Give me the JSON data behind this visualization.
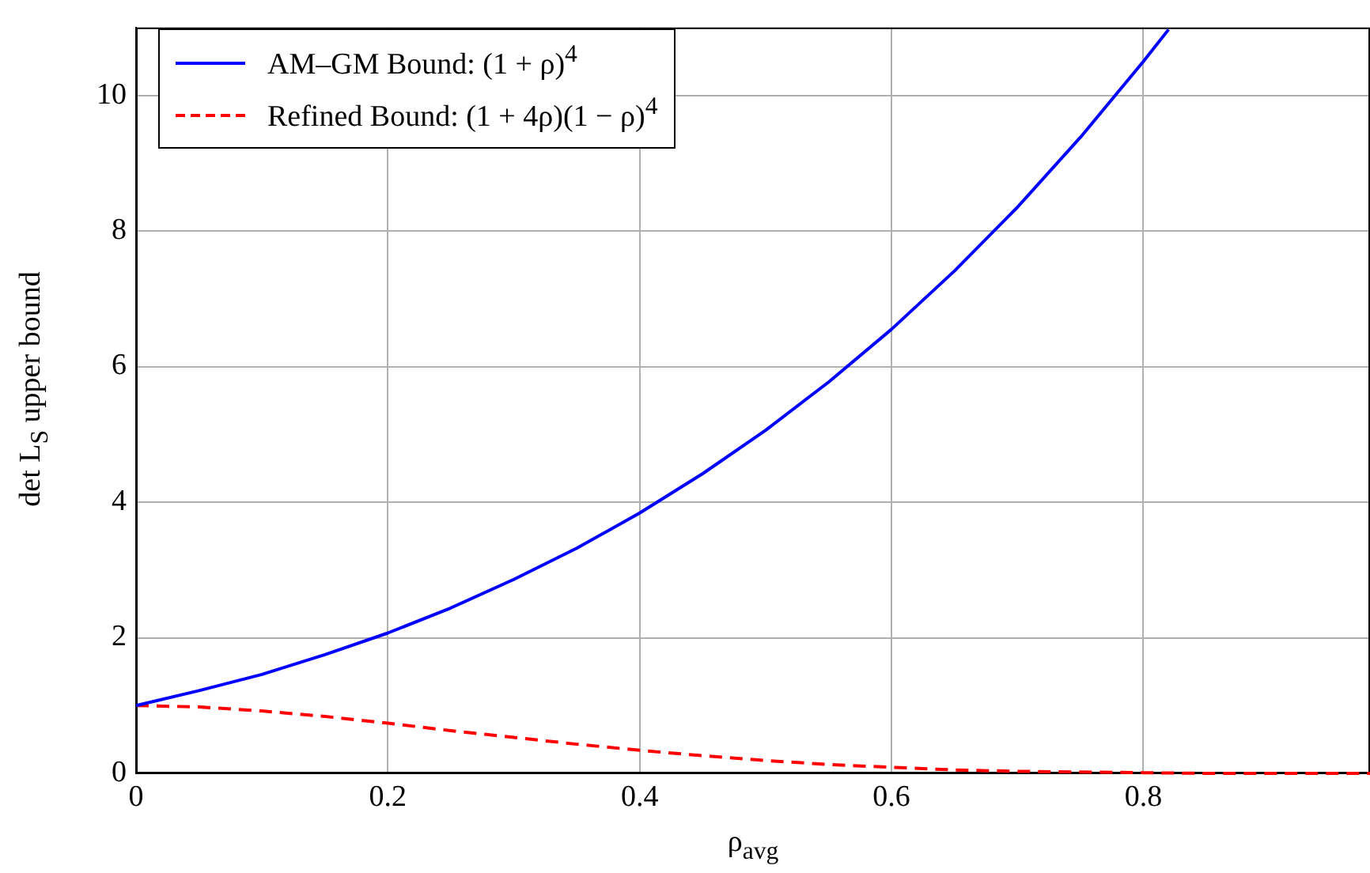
{
  "chart_data": {
    "type": "line",
    "xlabel": "ρ$_{avg}$",
    "ylabel": "det L$_{S}$ upper bound",
    "xlim": [
      0,
      0.98
    ],
    "ylim": [
      0,
      11
    ],
    "xticks": [
      0,
      0.2,
      0.4,
      0.6,
      0.8
    ],
    "yticks": [
      0,
      2,
      4,
      6,
      8,
      10
    ],
    "grid": true,
    "legend": "top left",
    "marker": "none",
    "series": [
      {
        "name": "AM–GM Bound: (1 + ρ)$^{4}$",
        "color": "#0000ff",
        "line_style": "solid",
        "x": [
          0,
          0.05,
          0.1,
          0.15,
          0.2,
          0.25,
          0.3,
          0.35,
          0.4,
          0.45,
          0.5,
          0.55,
          0.6,
          0.65,
          0.7,
          0.75,
          0.8,
          0.82
        ],
        "values": [
          1,
          1.22,
          1.46,
          1.75,
          2.07,
          2.44,
          2.86,
          3.32,
          3.84,
          4.42,
          5.06,
          5.77,
          6.55,
          7.41,
          8.35,
          9.38,
          10.5,
          10.97
        ]
      },
      {
        "name": "Refined Bound: (1 + 4ρ)(1 − ρ)$^{4}$",
        "color": "#ff0000",
        "line_style": "dashed",
        "x": [
          0,
          0.05,
          0.1,
          0.15,
          0.2,
          0.25,
          0.3,
          0.35,
          0.4,
          0.45,
          0.5,
          0.55,
          0.6,
          0.65,
          0.7,
          0.75,
          0.8,
          0.85,
          0.9,
          0.98
        ],
        "values": [
          1,
          0.98,
          0.92,
          0.84,
          0.74,
          0.63,
          0.53,
          0.43,
          0.34,
          0.26,
          0.19,
          0.13,
          0.09,
          0.05,
          0.03,
          0.02,
          0.01,
          0,
          0,
          0
        ]
      }
    ]
  }
}
